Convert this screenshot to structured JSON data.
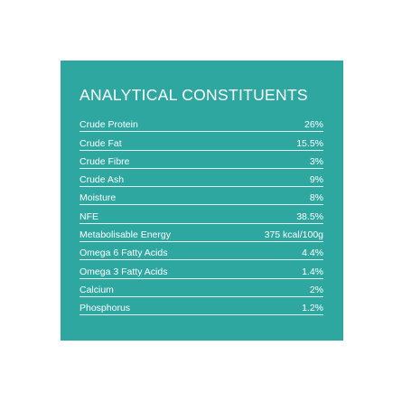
{
  "panel": {
    "background_color": "#2ea7a1",
    "title": "ANALYTICAL CONSTITUENTS",
    "rows": [
      {
        "label": "Crude Protein",
        "value": "26%"
      },
      {
        "label": "Crude Fat",
        "value": "15.5%"
      },
      {
        "label": "Crude Fibre",
        "value": "3%"
      },
      {
        "label": "Crude Ash",
        "value": "9%"
      },
      {
        "label": "Moisture",
        "value": "8%"
      },
      {
        "label": "NFE",
        "value": "38.5%"
      },
      {
        "label": "Metabolisable Energy",
        "value": "375 kcal/100g"
      },
      {
        "label": "Omega 6 Fatty Acids",
        "value": "4.4%"
      },
      {
        "label": "Omega 3 Fatty Acids",
        "value": "1.4%"
      },
      {
        "label": "Calcium",
        "value": "2%"
      },
      {
        "label": "Phosphorus",
        "value": "1.2%"
      }
    ]
  }
}
